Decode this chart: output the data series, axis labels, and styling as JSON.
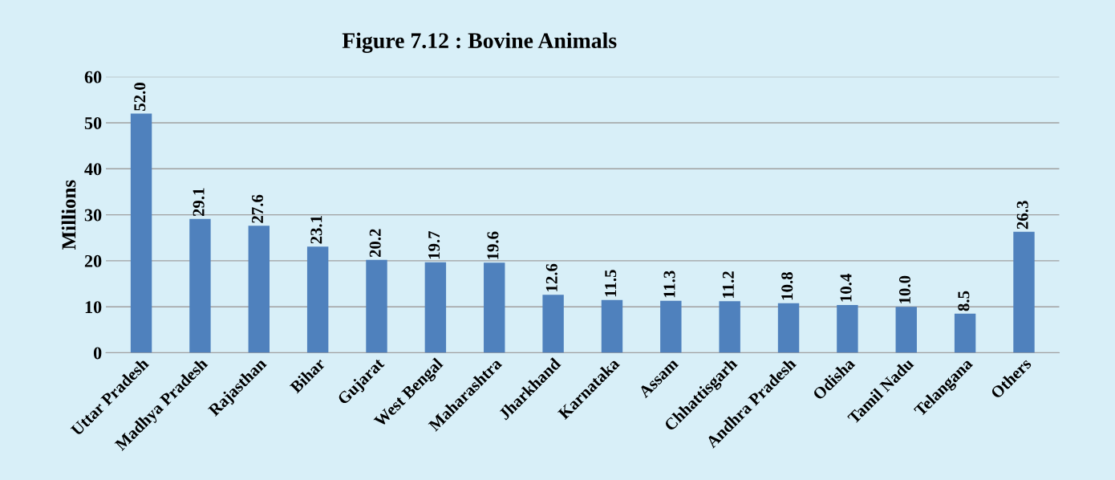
{
  "chart_data": {
    "type": "bar",
    "title": "Figure 7.12 : Bovine Animals",
    "ylabel": "Millions",
    "categories": [
      "Uttar Pradesh",
      "Madhya Pradesh",
      "Rajasthan",
      "Bihar",
      "Gujarat",
      "West Bengal",
      "Maharashtra",
      "Jharkhand",
      "Karnataka",
      "Assam",
      "Chhattisgarh",
      "Andhra Pradesh",
      "Odisha",
      "Tamil Nadu",
      "Telangana",
      "Others"
    ],
    "values": [
      52.0,
      29.1,
      27.6,
      23.1,
      20.2,
      19.7,
      19.6,
      12.6,
      11.5,
      11.3,
      11.2,
      10.8,
      10.4,
      10.0,
      8.5,
      26.3
    ],
    "value_labels": [
      "52.0",
      "29.1",
      "27.6",
      "23.1",
      "20.2",
      "19.7",
      "19.6",
      "12.6",
      "11.5",
      "11.3",
      "11.2",
      "10.8",
      "10.4",
      "10.0",
      "8.5",
      "26.3"
    ],
    "color": "#4f81bd",
    "ylim": [
      0,
      60
    ],
    "yticks": [
      0,
      10,
      20,
      30,
      40,
      50,
      60
    ],
    "grid": "y",
    "legend": false
  }
}
